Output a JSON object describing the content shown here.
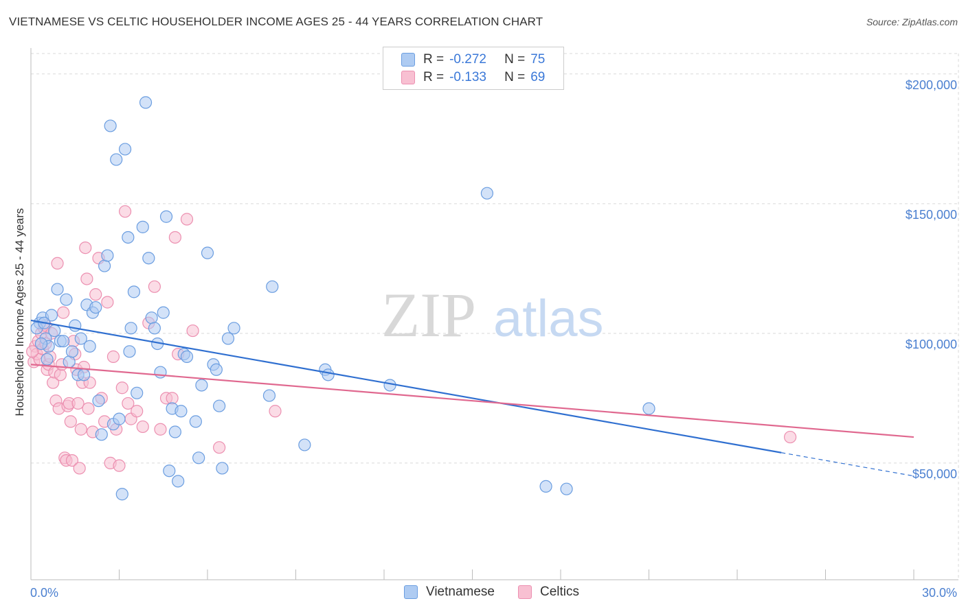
{
  "title": "VIETNAMESE VS CELTIC HOUSEHOLDER INCOME AGES 25 - 44 YEARS CORRELATION CHART",
  "source": "Source: ZipAtlas.com",
  "watermark": {
    "zip": "ZIP",
    "atlas": "atlas"
  },
  "legend": {
    "r_label": "R =",
    "n_label": "N =",
    "series": [
      {
        "r": "-0.272",
        "n": "75"
      },
      {
        "r": "-0.133",
        "n": "69"
      }
    ]
  },
  "colors": {
    "vietnamese_fill": "#aecbf2",
    "vietnamese_stroke": "#6a9de0",
    "vietnamese_line": "#2f6fd0",
    "celtics_fill": "#f8c0d2",
    "celtics_stroke": "#ec8fb0",
    "celtics_line": "#e0688f",
    "axis_label": "#4a7fd0",
    "grid": "#d9d9d9"
  },
  "chart_data": {
    "type": "scatter",
    "title": "VIETNAMESE VS CELTIC HOUSEHOLDER INCOME AGES 25 - 44 YEARS CORRELATION CHART",
    "xlabel": "",
    "ylabel": "Householder Income Ages 25 - 44 years",
    "xlim": [
      0,
      30
    ],
    "ylim": [
      5000,
      210000
    ],
    "x_tick_labels": [
      "0.0%",
      "30.0%"
    ],
    "y_ticks": [
      50000,
      100000,
      150000,
      200000
    ],
    "y_tick_labels": [
      "$50,000",
      "$100,000",
      "$150,000",
      "$200,000"
    ],
    "series": [
      {
        "name": "Vietnamese",
        "r": -0.272,
        "n": 75,
        "trend": {
          "x0": 0,
          "y0": 105000,
          "x1": 25.5,
          "y1": 54000,
          "dash_to_x": 30,
          "dash_to_y": 45000
        },
        "points": [
          [
            0.3,
            104000
          ],
          [
            0.4,
            106000
          ],
          [
            0.5,
            98000
          ],
          [
            0.6,
            95000
          ],
          [
            0.7,
            107000
          ],
          [
            0.8,
            101000
          ],
          [
            0.9,
            117000
          ],
          [
            1.0,
            97000
          ],
          [
            1.1,
            97000
          ],
          [
            1.2,
            113000
          ],
          [
            1.3,
            89000
          ],
          [
            1.4,
            93000
          ],
          [
            1.5,
            103000
          ],
          [
            1.6,
            84000
          ],
          [
            1.7,
            98000
          ],
          [
            1.8,
            84000
          ],
          [
            1.9,
            111000
          ],
          [
            2.0,
            95000
          ],
          [
            2.1,
            108000
          ],
          [
            2.2,
            110000
          ],
          [
            2.3,
            74000
          ],
          [
            2.4,
            61000
          ],
          [
            2.5,
            126000
          ],
          [
            2.6,
            130000
          ],
          [
            2.7,
            180000
          ],
          [
            2.8,
            65000
          ],
          [
            2.9,
            167000
          ],
          [
            3.0,
            67000
          ],
          [
            3.1,
            38000
          ],
          [
            3.2,
            171000
          ],
          [
            3.3,
            137000
          ],
          [
            3.35,
            93000
          ],
          [
            3.4,
            102000
          ],
          [
            3.5,
            116000
          ],
          [
            3.6,
            77000
          ],
          [
            3.8,
            141000
          ],
          [
            3.9,
            189000
          ],
          [
            4.0,
            129000
          ],
          [
            4.1,
            106000
          ],
          [
            4.2,
            102000
          ],
          [
            4.3,
            96000
          ],
          [
            4.4,
            85000
          ],
          [
            4.5,
            108000
          ],
          [
            4.6,
            145000
          ],
          [
            4.7,
            47000
          ],
          [
            4.8,
            71000
          ],
          [
            4.9,
            62000
          ],
          [
            5.0,
            43000
          ],
          [
            5.1,
            70000
          ],
          [
            5.2,
            92000
          ],
          [
            5.3,
            91000
          ],
          [
            5.6,
            66000
          ],
          [
            5.7,
            52000
          ],
          [
            5.8,
            80000
          ],
          [
            6.0,
            131000
          ],
          [
            6.2,
            88000
          ],
          [
            6.3,
            86000
          ],
          [
            6.4,
            72000
          ],
          [
            6.5,
            48000
          ],
          [
            6.7,
            98000
          ],
          [
            6.9,
            102000
          ],
          [
            8.1,
            76000
          ],
          [
            8.2,
            118000
          ],
          [
            9.3,
            57000
          ],
          [
            10.0,
            86000
          ],
          [
            10.1,
            84000
          ],
          [
            12.2,
            80000
          ],
          [
            15.5,
            154000
          ],
          [
            17.5,
            41000
          ],
          [
            18.2,
            40000
          ],
          [
            21.0,
            71000
          ],
          [
            0.2,
            102000
          ],
          [
            0.35,
            96000
          ],
          [
            0.55,
            90000
          ],
          [
            0.45,
            104000
          ]
        ]
      },
      {
        "name": "Celtics",
        "r": -0.133,
        "n": 69,
        "trend": {
          "x0": 0,
          "y0": 88000,
          "x1": 30,
          "y1": 60000
        },
        "points": [
          [
            0.1,
            89000
          ],
          [
            0.15,
            95000
          ],
          [
            0.2,
            92000
          ],
          [
            0.25,
            97000
          ],
          [
            0.3,
            90000
          ],
          [
            0.35,
            100000
          ],
          [
            0.4,
            94000
          ],
          [
            0.45,
            102000
          ],
          [
            0.5,
            103000
          ],
          [
            0.55,
            86000
          ],
          [
            0.6,
            88000
          ],
          [
            0.65,
            91000
          ],
          [
            0.7,
            100000
          ],
          [
            0.75,
            81000
          ],
          [
            0.8,
            85000
          ],
          [
            0.85,
            74000
          ],
          [
            0.9,
            127000
          ],
          [
            0.95,
            71000
          ],
          [
            1.0,
            84000
          ],
          [
            1.05,
            88000
          ],
          [
            1.1,
            108000
          ],
          [
            1.15,
            52000
          ],
          [
            1.2,
            51000
          ],
          [
            1.25,
            72000
          ],
          [
            1.3,
            73000
          ],
          [
            1.35,
            66000
          ],
          [
            1.4,
            51000
          ],
          [
            1.45,
            97000
          ],
          [
            1.5,
            92000
          ],
          [
            1.55,
            86000
          ],
          [
            1.6,
            73000
          ],
          [
            1.65,
            48000
          ],
          [
            1.7,
            63000
          ],
          [
            1.75,
            81000
          ],
          [
            1.8,
            87000
          ],
          [
            1.85,
            133000
          ],
          [
            1.9,
            121000
          ],
          [
            1.95,
            71000
          ],
          [
            2.0,
            81000
          ],
          [
            2.1,
            62000
          ],
          [
            2.2,
            115000
          ],
          [
            2.3,
            129000
          ],
          [
            2.4,
            75000
          ],
          [
            2.5,
            66000
          ],
          [
            2.6,
            112000
          ],
          [
            2.7,
            50000
          ],
          [
            2.8,
            91000
          ],
          [
            2.9,
            63000
          ],
          [
            3.0,
            49000
          ],
          [
            3.1,
            79000
          ],
          [
            3.2,
            147000
          ],
          [
            3.3,
            73000
          ],
          [
            3.4,
            67000
          ],
          [
            3.6,
            70000
          ],
          [
            3.8,
            64000
          ],
          [
            4.0,
            104000
          ],
          [
            4.2,
            118000
          ],
          [
            4.4,
            63000
          ],
          [
            4.6,
            75000
          ],
          [
            4.8,
            75000
          ],
          [
            4.9,
            137000
          ],
          [
            5.0,
            92000
          ],
          [
            5.3,
            144000
          ],
          [
            5.5,
            101000
          ],
          [
            6.4,
            56000
          ],
          [
            8.3,
            70000
          ],
          [
            25.8,
            60000
          ],
          [
            0.05,
            93000
          ],
          [
            0.5,
            96000
          ]
        ]
      }
    ]
  }
}
